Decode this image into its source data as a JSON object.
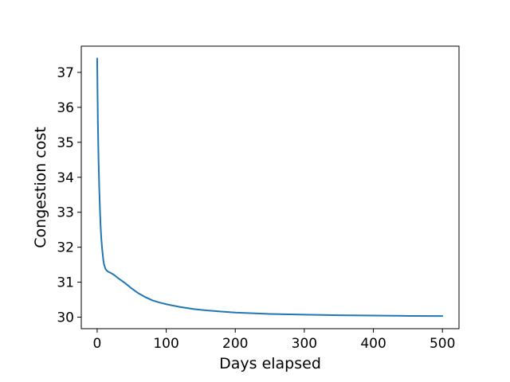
{
  "chart_data": {
    "type": "line",
    "title": "",
    "xlabel": "Days elapsed",
    "ylabel": "Congestion cost",
    "xlim": [
      -23,
      524
    ],
    "ylim": [
      29.67,
      37.75
    ],
    "xticks": [
      0,
      100,
      200,
      300,
      400,
      500
    ],
    "yticks": [
      30,
      31,
      32,
      33,
      34,
      35,
      36,
      37
    ],
    "grid": false,
    "legend": "none",
    "line_color": "#1f77b4",
    "series": [
      {
        "x": [
          0,
          1,
          2,
          3,
          4,
          5,
          6,
          7,
          8,
          9,
          10,
          12,
          14,
          16,
          18,
          20,
          25,
          30,
          40,
          50,
          60,
          70,
          80,
          90,
          100,
          120,
          140,
          160,
          180,
          200,
          250,
          300,
          350,
          400,
          450,
          500
        ],
        "y": [
          37.4,
          35.6,
          34.5,
          33.7,
          33.1,
          32.6,
          32.25,
          32.0,
          31.8,
          31.62,
          31.5,
          31.38,
          31.33,
          31.3,
          31.28,
          31.26,
          31.2,
          31.12,
          30.98,
          30.82,
          30.68,
          30.57,
          30.48,
          30.42,
          30.37,
          30.29,
          30.23,
          30.19,
          30.16,
          30.13,
          30.09,
          30.07,
          30.055,
          30.045,
          30.035,
          30.03
        ]
      }
    ]
  }
}
